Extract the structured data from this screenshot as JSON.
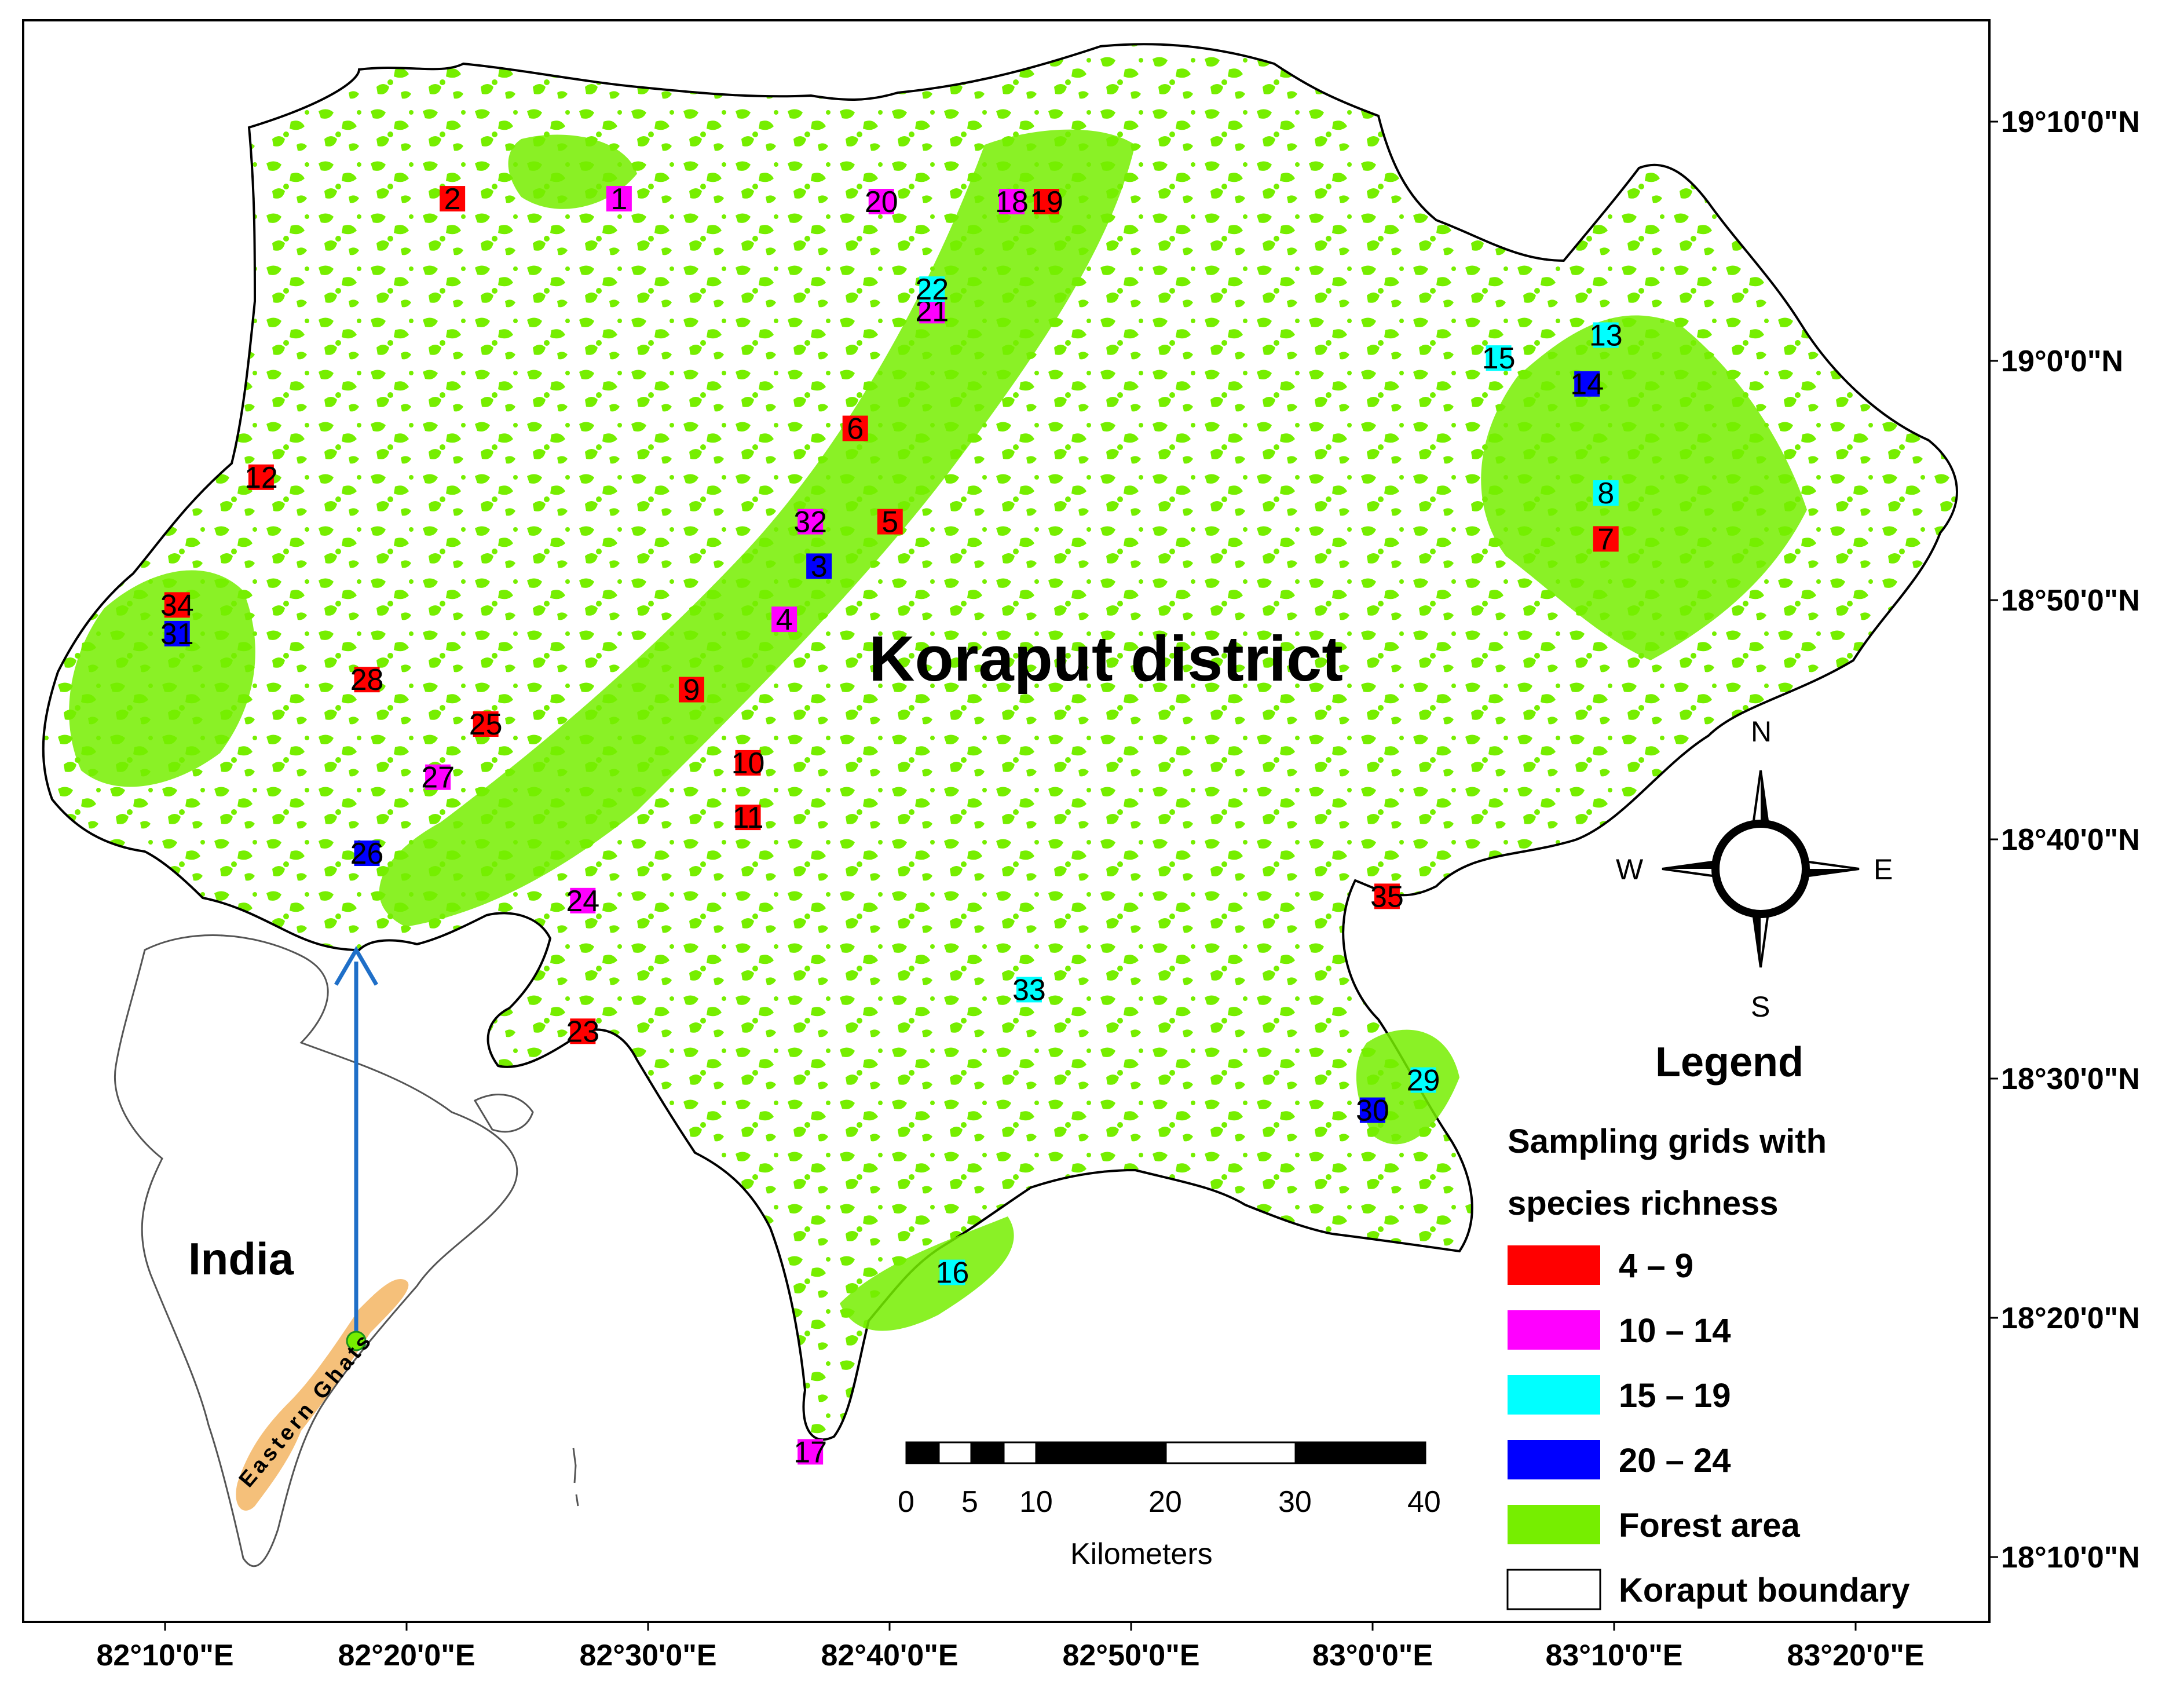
{
  "map": {
    "title": "Koraput district",
    "inset_country": "India",
    "inset_region": "Eastern Ghats",
    "lon_labels": [
      "82°10'0\"E",
      "82°20'0\"E",
      "82°30'0\"E",
      "82°40'0\"E",
      "82°50'0\"E",
      "83°0'0\"E",
      "83°10'0\"E",
      "83°20'0\"E"
    ],
    "lat_labels": [
      "19°10'0\"N",
      "19°0'0\"N",
      "18°50'0\"N",
      "18°40'0\"N",
      "18°30'0\"N",
      "18°20'0\"N",
      "18°10'0\"N"
    ],
    "compass": {
      "n": "N",
      "s": "S",
      "e": "E",
      "w": "W"
    },
    "scale": {
      "ticks": [
        "0",
        "5",
        "10",
        "20",
        "30",
        "40"
      ],
      "unit": "Kilometers"
    },
    "legend": {
      "title": "Legend",
      "subtitle_line1": "Sampling grids with",
      "subtitle_line2": "species richness",
      "items": [
        {
          "label": "4 – 9",
          "color": "#ff0000"
        },
        {
          "label": "10 – 14",
          "color": "#ff00ff"
        },
        {
          "label": "15 – 19",
          "color": "#00ffff"
        },
        {
          "label": "20 – 24",
          "color": "#0000ff"
        },
        {
          "label": "Forest area",
          "color": "#76ee00"
        },
        {
          "label": "Koraput boundary",
          "color": "#ffffff"
        }
      ]
    },
    "colors": {
      "forest": "#76ee00",
      "eastern_ghats": "#f5c07a",
      "arrow": "#1f6fc8"
    },
    "grids": [
      {
        "id": "1",
        "class": "10 – 14",
        "lon": 82.48,
        "lat": 19.113
      },
      {
        "id": "2",
        "class": "4 – 9",
        "lon": 82.365,
        "lat": 19.113
      },
      {
        "id": "3",
        "class": "20 – 24",
        "lon": 82.618,
        "lat": 18.857
      },
      {
        "id": "4",
        "class": "10 – 14",
        "lon": 82.594,
        "lat": 18.82
      },
      {
        "id": "5",
        "class": "4 – 9",
        "lon": 82.667,
        "lat": 18.888
      },
      {
        "id": "6",
        "class": "4 – 9",
        "lon": 82.643,
        "lat": 18.953
      },
      {
        "id": "7",
        "class": "4 – 9",
        "lon": 83.161,
        "lat": 18.876
      },
      {
        "id": "8",
        "class": "15 – 19",
        "lon": 83.161,
        "lat": 18.908
      },
      {
        "id": "9",
        "class": "4 – 9",
        "lon": 82.53,
        "lat": 18.771
      },
      {
        "id": "10",
        "class": "4 – 9",
        "lon": 82.569,
        "lat": 18.72
      },
      {
        "id": "11",
        "class": "4 – 9",
        "lon": 82.569,
        "lat": 18.682
      },
      {
        "id": "12",
        "class": "4 – 9",
        "lon": 82.233,
        "lat": 18.919
      },
      {
        "id": "13",
        "class": "15 – 19",
        "lon": 83.161,
        "lat": 19.018
      },
      {
        "id": "14",
        "class": "20 – 24",
        "lon": 83.148,
        "lat": 18.984
      },
      {
        "id": "15",
        "class": "15 – 19",
        "lon": 83.087,
        "lat": 19.002
      },
      {
        "id": "16",
        "class": "15 – 19",
        "lon": 82.71,
        "lat": 18.365
      },
      {
        "id": "17",
        "class": "10 – 14",
        "lon": 82.612,
        "lat": 18.24
      },
      {
        "id": "18",
        "class": "10 – 14",
        "lon": 82.751,
        "lat": 19.111
      },
      {
        "id": "19",
        "class": "4 – 9",
        "lon": 82.775,
        "lat": 19.111
      },
      {
        "id": "20",
        "class": "10 – 14",
        "lon": 82.661,
        "lat": 19.111
      },
      {
        "id": "21",
        "class": "10 – 14",
        "lon": 82.696,
        "lat": 19.035
      },
      {
        "id": "22",
        "class": "15 – 19",
        "lon": 82.696,
        "lat": 19.05
      },
      {
        "id": "23",
        "class": "4 – 9",
        "lon": 82.455,
        "lat": 18.533
      },
      {
        "id": "24",
        "class": "10 – 14",
        "lon": 82.455,
        "lat": 18.624
      },
      {
        "id": "25",
        "class": "4 – 9",
        "lon": 82.388,
        "lat": 18.747
      },
      {
        "id": "26",
        "class": "20 – 24",
        "lon": 82.306,
        "lat": 18.657
      },
      {
        "id": "27",
        "class": "10 – 14",
        "lon": 82.355,
        "lat": 18.71
      },
      {
        "id": "28",
        "class": "4 – 9",
        "lon": 82.306,
        "lat": 18.778
      },
      {
        "id": "29",
        "class": "15 – 19",
        "lon": 83.035,
        "lat": 18.499
      },
      {
        "id": "30",
        "class": "20 – 24",
        "lon": 83.0,
        "lat": 18.478
      },
      {
        "id": "31",
        "class": "20 – 24",
        "lon": 82.175,
        "lat": 18.81
      },
      {
        "id": "32",
        "class": "10 – 14",
        "lon": 82.612,
        "lat": 18.888
      },
      {
        "id": "33",
        "class": "15 – 19",
        "lon": 82.763,
        "lat": 18.562
      },
      {
        "id": "34",
        "class": "4 – 9",
        "lon": 82.175,
        "lat": 18.83
      },
      {
        "id": "35",
        "class": "4 – 9",
        "lon": 83.01,
        "lat": 18.627
      }
    ]
  }
}
